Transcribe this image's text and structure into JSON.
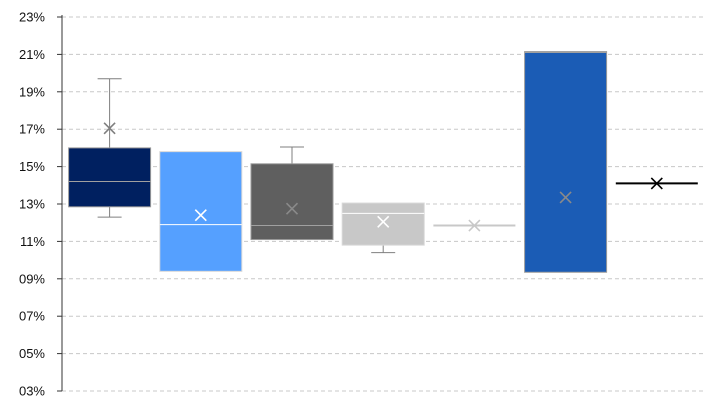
{
  "chart_data": {
    "type": "box",
    "y_axis": {
      "min": 3,
      "max": 23,
      "tick_step": 2,
      "tick_labels": [
        "03%",
        "05%",
        "07%",
        "09%",
        "11%",
        "13%",
        "15%",
        "17%",
        "19%",
        "21%",
        "23%"
      ],
      "gridlines": true,
      "gridline_style": "dashed"
    },
    "legend": "none",
    "series": [
      {
        "color": "#002060",
        "whisker_low": 12.3,
        "q1": 12.85,
        "median": 14.2,
        "q3": 16.0,
        "whisker_high": 19.7,
        "mean": 17.05
      },
      {
        "color": "#55A0FF",
        "whisker_low": 9.4,
        "q1": 9.4,
        "median": 11.9,
        "q3": 15.8,
        "whisker_high": 15.8,
        "mean": 12.4
      },
      {
        "color": "#5F5F5F",
        "whisker_low": 11.1,
        "q1": 11.1,
        "median": 11.85,
        "q3": 15.15,
        "whisker_high": 16.05,
        "mean": 12.75
      },
      {
        "color": "#C8C8C8",
        "whisker_low": 10.4,
        "q1": 10.8,
        "median": 12.5,
        "q3": 13.05,
        "whisker_high": 13.05,
        "mean": 12.05
      },
      {
        "color": "#C8C8C8",
        "whisker_low": 11.85,
        "q1": 11.85,
        "median": 11.85,
        "q3": 11.85,
        "whisker_high": 11.85,
        "mean": 11.85
      },
      {
        "color": "#1B5CB5",
        "whisker_low": 9.35,
        "q1": 9.35,
        "median": 21.1,
        "q3": 21.15,
        "whisker_high": 21.15,
        "mean": 13.35
      },
      {
        "color": "#000000",
        "whisker_low": 14.1,
        "q1": 14.1,
        "median": 14.1,
        "q3": 14.1,
        "whisker_high": 14.1,
        "mean": 14.1
      }
    ]
  }
}
